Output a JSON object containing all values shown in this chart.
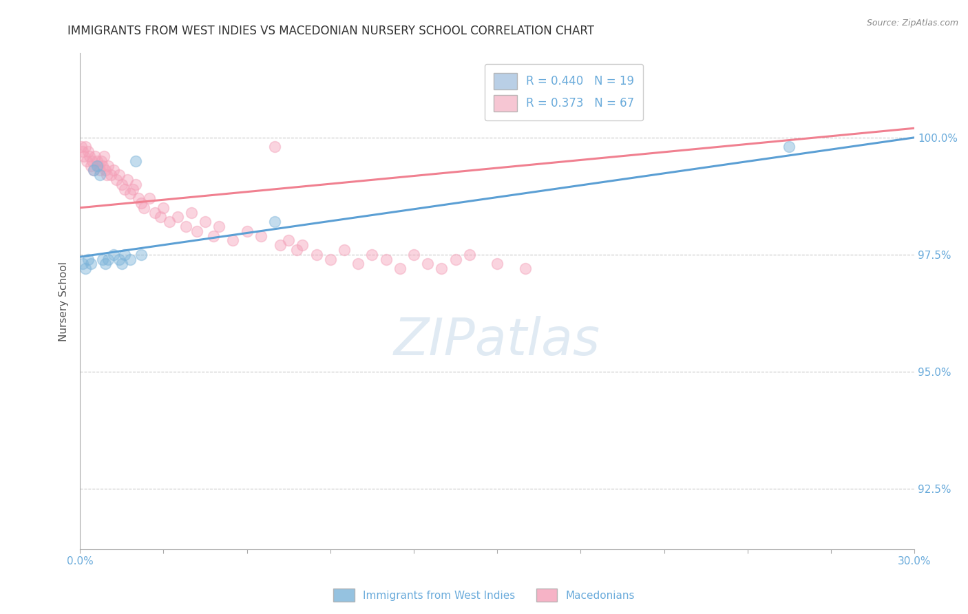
{
  "title": "IMMIGRANTS FROM WEST INDIES VS MACEDONIAN NURSERY SCHOOL CORRELATION CHART",
  "source": "Source: ZipAtlas.com",
  "xlabel": "",
  "ylabel": "Nursery School",
  "xlim": [
    0.0,
    30.0
  ],
  "ylim": [
    91.2,
    101.8
  ],
  "yticks": [
    92.5,
    95.0,
    97.5,
    100.0
  ],
  "xticks": [
    0.0,
    3.0,
    6.0,
    9.0,
    12.0,
    15.0,
    18.0,
    21.0,
    24.0,
    27.0,
    30.0
  ],
  "legend_entries": [
    {
      "label": "R = 0.440   N = 19",
      "color": "#a8c4e0"
    },
    {
      "label": "R = 0.373   N = 67",
      "color": "#f4b8c8"
    }
  ],
  "legend_labels_bottom": [
    "Immigrants from West Indies",
    "Macedonians"
  ],
  "blue_scatter_x": [
    0.1,
    0.2,
    0.3,
    0.4,
    0.5,
    0.6,
    0.7,
    0.8,
    0.9,
    1.0,
    1.2,
    1.4,
    1.5,
    1.6,
    1.8,
    2.0,
    2.2,
    7.0,
    25.5
  ],
  "blue_scatter_y": [
    97.3,
    97.2,
    97.4,
    97.3,
    99.3,
    99.4,
    99.2,
    97.4,
    97.3,
    97.4,
    97.5,
    97.4,
    97.3,
    97.5,
    97.4,
    99.5,
    97.5,
    98.2,
    99.8
  ],
  "pink_scatter_x": [
    0.05,
    0.1,
    0.15,
    0.2,
    0.25,
    0.3,
    0.35,
    0.4,
    0.45,
    0.5,
    0.55,
    0.6,
    0.65,
    0.7,
    0.75,
    0.8,
    0.85,
    0.9,
    0.95,
    1.0,
    1.1,
    1.2,
    1.3,
    1.4,
    1.5,
    1.6,
    1.7,
    1.8,
    1.9,
    2.0,
    2.1,
    2.2,
    2.3,
    2.5,
    2.7,
    2.9,
    3.0,
    3.2,
    3.5,
    3.8,
    4.0,
    4.2,
    4.5,
    4.8,
    5.0,
    5.5,
    6.0,
    6.5,
    7.0,
    7.2,
    7.5,
    7.8,
    8.0,
    8.5,
    9.0,
    9.5,
    10.0,
    10.5,
    11.0,
    11.5,
    12.0,
    12.5,
    13.0,
    13.5,
    14.0,
    15.0,
    16.0
  ],
  "pink_scatter_y": [
    99.8,
    99.7,
    99.6,
    99.8,
    99.5,
    99.7,
    99.6,
    99.4,
    99.5,
    99.3,
    99.6,
    99.5,
    99.4,
    99.3,
    99.5,
    99.4,
    99.6,
    99.3,
    99.2,
    99.4,
    99.2,
    99.3,
    99.1,
    99.2,
    99.0,
    98.9,
    99.1,
    98.8,
    98.9,
    99.0,
    98.7,
    98.6,
    98.5,
    98.7,
    98.4,
    98.3,
    98.5,
    98.2,
    98.3,
    98.1,
    98.4,
    98.0,
    98.2,
    97.9,
    98.1,
    97.8,
    98.0,
    97.9,
    99.8,
    97.7,
    97.8,
    97.6,
    97.7,
    97.5,
    97.4,
    97.6,
    97.3,
    97.5,
    97.4,
    97.2,
    97.5,
    97.3,
    97.2,
    97.4,
    97.5,
    97.3,
    97.2
  ],
  "blue_color": "#7bb3d9",
  "pink_color": "#f4a0b8",
  "blue_line_color": "#5b9fd4",
  "pink_line_color": "#f08090",
  "blue_trend": [
    0.0,
    30.0,
    97.45,
    100.0
  ],
  "pink_trend": [
    0.0,
    30.0,
    98.5,
    100.2
  ],
  "marker_size": 130,
  "alpha": 0.45,
  "background_color": "#ffffff",
  "grid_color": "#c8c8c8",
  "tick_color": "#6aabdb",
  "title_color": "#333333"
}
